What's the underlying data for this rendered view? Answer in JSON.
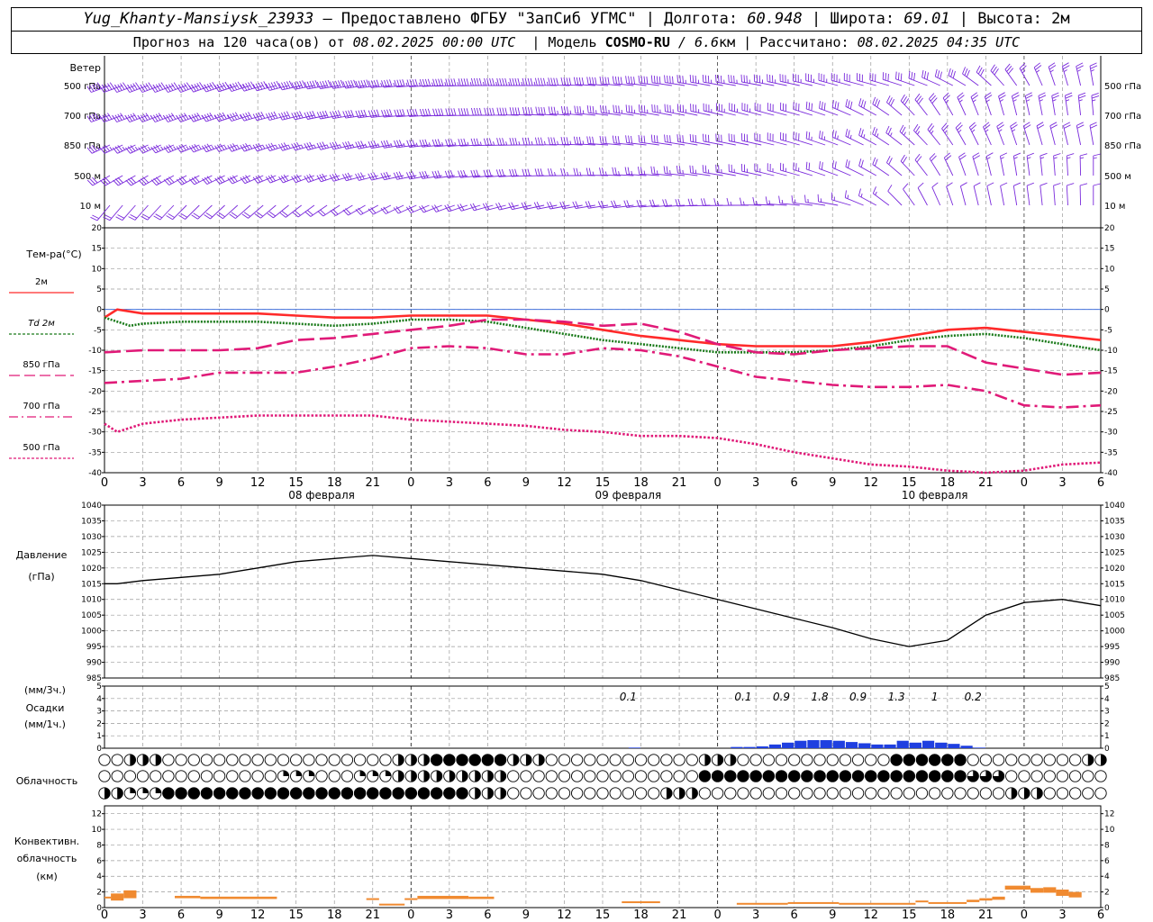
{
  "header": {
    "station": "Yug_Khanty-Mansiysk_23933",
    "provided": "– Предоставлено ФГБУ \"ЗапСиб УГМС\"",
    "lon_label": "Долгота:",
    "lon_value": "60.948",
    "lat_label": "Широта:",
    "lat_value": "69.01",
    "alt_label": "Высота:",
    "alt_value": "2м",
    "forecast_prefix": "Прогноз на 120 часа(ов) от",
    "forecast_from": "08.02.2025 00:00 UTC",
    "model_label": "Модель",
    "model_name": "COSMO-RU",
    "model_res": "/ 6.6",
    "model_res_unit": "км",
    "calc_label": "Рассчитано:",
    "calc_time": "08.02.2025 04:35 UTC"
  },
  "colors": {
    "t2m": "#ff2a2a",
    "td2m": "#1a7a1a",
    "t850": "#e01a78",
    "t700": "#e01a78",
    "t500": "#e01a78",
    "wind": "#7a2adc",
    "pressure": "#000000",
    "precip": "#1f3fe0",
    "convective": "#f08a30",
    "zero": "#2a5fd8"
  },
  "wind": {
    "title": "Ветер",
    "levels": [
      "500 гПа",
      "700 гПа",
      "850 гПа",
      "500 м",
      "10  м"
    ],
    "dir_deg": [
      [
        250,
        250,
        250,
        252,
        255,
        260,
        262,
        265,
        268,
        270,
        270,
        272,
        275,
        278,
        280,
        280,
        282,
        285,
        285,
        290,
        300,
        320,
        340,
        350
      ],
      [
        250,
        250,
        250,
        252,
        255,
        258,
        262,
        265,
        268,
        270,
        272,
        275,
        278,
        280,
        282,
        285,
        285,
        290,
        300,
        320,
        335,
        345,
        350,
        355
      ],
      [
        245,
        245,
        248,
        250,
        252,
        255,
        258,
        262,
        265,
        268,
        270,
        272,
        275,
        278,
        280,
        282,
        285,
        290,
        300,
        315,
        330,
        340,
        345,
        350
      ],
      [
        240,
        240,
        242,
        245,
        248,
        250,
        255,
        258,
        262,
        265,
        268,
        270,
        272,
        275,
        278,
        282,
        285,
        290,
        300,
        320,
        340,
        350,
        355,
        0
      ],
      [
        220,
        222,
        225,
        228,
        230,
        235,
        240,
        245,
        250,
        255,
        258,
        260,
        262,
        265,
        268,
        270,
        275,
        280,
        300,
        330,
        345,
        350,
        355,
        0
      ]
    ],
    "speed_kt": [
      [
        55,
        55,
        55,
        55,
        50,
        50,
        50,
        45,
        45,
        45,
        45,
        40,
        40,
        40,
        35,
        35,
        35,
        35,
        30,
        30,
        30,
        30,
        25,
        25
      ],
      [
        45,
        45,
        45,
        45,
        40,
        40,
        40,
        40,
        40,
        40,
        40,
        35,
        35,
        35,
        35,
        35,
        30,
        30,
        30,
        30,
        25,
        25,
        25,
        25
      ],
      [
        35,
        35,
        35,
        35,
        35,
        35,
        35,
        35,
        35,
        35,
        35,
        35,
        30,
        30,
        30,
        30,
        30,
        25,
        25,
        25,
        25,
        25,
        20,
        20
      ],
      [
        30,
        30,
        30,
        30,
        30,
        30,
        30,
        30,
        30,
        30,
        30,
        25,
        25,
        25,
        25,
        25,
        25,
        20,
        20,
        20,
        20,
        15,
        15,
        15
      ],
      [
        20,
        20,
        20,
        20,
        20,
        20,
        20,
        20,
        20,
        20,
        20,
        20,
        20,
        20,
        20,
        15,
        15,
        15,
        15,
        10,
        10,
        10,
        10,
        10
      ]
    ]
  },
  "chart_data": [
    {
      "type": "line",
      "ylabel": "Тем-ра(°С)",
      "ylim": [
        -40,
        20
      ],
      "yticks": [
        20,
        15,
        10,
        5,
        0,
        -5,
        -10,
        -15,
        -20,
        -25,
        -30,
        -35,
        -40
      ],
      "x_hours": [
        0,
        3,
        6,
        9,
        12,
        15,
        18,
        21,
        24,
        27,
        30,
        33,
        36,
        39,
        42,
        45,
        48,
        51,
        54,
        57,
        60,
        63,
        66,
        69,
        72,
        75,
        78
      ],
      "x_tick_labels": [
        "0",
        "3",
        "6",
        "9",
        "12",
        "15",
        "18",
        "21",
        "0",
        "3",
        "6",
        "9",
        "12",
        "15",
        "18",
        "21",
        "0",
        "3",
        "6",
        "9",
        "12",
        "15",
        "18",
        "21",
        "0",
        "3",
        "6"
      ],
      "day_labels": [
        "08 февраля",
        "09 февраля",
        "10 февраля"
      ],
      "grid": true,
      "series": [
        {
          "name": "2м",
          "key": "t2m",
          "style": "solid",
          "x": [
            0,
            1,
            3,
            6,
            9,
            12,
            15,
            18,
            21,
            24,
            27,
            30,
            33,
            36,
            39,
            42,
            45,
            48,
            51,
            54,
            57,
            60,
            63,
            66,
            69,
            72,
            75,
            78
          ],
          "values": [
            -2,
            0,
            -1,
            -1,
            -1,
            -1,
            -1.5,
            -2,
            -2,
            -1.5,
            -1.5,
            -1.5,
            -2.5,
            -3.5,
            -5,
            -6.5,
            -7.5,
            -8.5,
            -9,
            -9,
            -9,
            -8,
            -6.5,
            -5,
            -4.5,
            -5.5,
            -6.5,
            -7.5
          ]
        },
        {
          "name": "Td  2м",
          "key": "td2m",
          "style": "dotted",
          "x": [
            0,
            2,
            3,
            6,
            9,
            12,
            15,
            18,
            21,
            24,
            27,
            30,
            33,
            36,
            39,
            42,
            45,
            48,
            51,
            54,
            57,
            60,
            63,
            66,
            69,
            72,
            75,
            78
          ],
          "values": [
            -2,
            -4,
            -3.5,
            -3,
            -3,
            -3,
            -3.5,
            -4,
            -3.5,
            -2.5,
            -2.5,
            -3,
            -4.5,
            -6,
            -7.5,
            -8.5,
            -9.5,
            -10.5,
            -10.5,
            -10.5,
            -10,
            -9,
            -7.5,
            -6.5,
            -6,
            -7,
            -8.5,
            -10
          ]
        },
        {
          "name": "850 гПа",
          "key": "t850",
          "style": "long-dash",
          "x": [
            0,
            3,
            6,
            9,
            12,
            15,
            18,
            21,
            24,
            27,
            30,
            33,
            36,
            39,
            42,
            45,
            48,
            51,
            54,
            57,
            60,
            63,
            66,
            69,
            72,
            75,
            78
          ],
          "values": [
            -10.5,
            -10,
            -10,
            -10,
            -9.5,
            -7.5,
            -7,
            -6,
            -5,
            -4,
            -2.5,
            -2.5,
            -3,
            -4,
            -3.5,
            -5.5,
            -8.5,
            -10.5,
            -11,
            -10,
            -9.5,
            -9,
            -9,
            -13,
            -14.5,
            -16,
            -15.5
          ]
        },
        {
          "name": "700 гПа",
          "key": "t700",
          "style": "dash-dot",
          "x": [
            0,
            3,
            6,
            9,
            12,
            15,
            18,
            21,
            24,
            27,
            30,
            33,
            36,
            39,
            42,
            45,
            48,
            51,
            54,
            57,
            60,
            63,
            66,
            69,
            72,
            75,
            78
          ],
          "values": [
            -18,
            -17.5,
            -17,
            -15.5,
            -15.5,
            -15.5,
            -14,
            -12,
            -9.5,
            -9,
            -9.5,
            -11,
            -11,
            -9.5,
            -10,
            -11.5,
            -14,
            -16.5,
            -17.5,
            -18.5,
            -19,
            -19,
            -18.5,
            -20,
            -23.5,
            -24,
            -23.5
          ]
        },
        {
          "name": "500 гПа",
          "key": "t500",
          "style": "short-dash",
          "x": [
            0,
            1,
            3,
            6,
            9,
            12,
            15,
            18,
            21,
            24,
            27,
            30,
            33,
            36,
            39,
            42,
            45,
            48,
            51,
            54,
            57,
            60,
            63,
            66,
            69,
            72,
            75,
            78
          ],
          "values": [
            -28,
            -30,
            -28,
            -27,
            -26.5,
            -26,
            -26,
            -26,
            -26,
            -27,
            -27.5,
            -28,
            -28.5,
            -29.5,
            -30,
            -31,
            -31,
            -31.5,
            -33,
            -35,
            -36.5,
            -38,
            -38.5,
            -39.5,
            -40,
            -39.5,
            -38,
            -37.5
          ]
        }
      ]
    },
    {
      "type": "line",
      "ylabel": "Давление",
      "ylabel2": "(гПа)",
      "ylim": [
        985,
        1040
      ],
      "yticks": [
        1040,
        1035,
        1030,
        1025,
        1020,
        1015,
        1010,
        1005,
        1000,
        995,
        990,
        985
      ],
      "x_tick_labels": [
        "0",
        "3",
        "6",
        "9",
        "12",
        "15",
        "18",
        "21",
        "0",
        "3",
        "6",
        "9",
        "12",
        "15",
        "18",
        "21",
        "0",
        "3",
        "6",
        "9",
        "12",
        "15",
        "18",
        "21",
        "0",
        "3",
        "6"
      ],
      "grid": true,
      "series": [
        {
          "name": "Давление",
          "x": [
            0,
            1,
            3,
            6,
            9,
            12,
            15,
            18,
            21,
            24,
            27,
            30,
            33,
            36,
            39,
            42,
            45,
            48,
            51,
            54,
            57,
            60,
            63,
            66,
            69,
            72,
            75,
            78
          ],
          "values": [
            1015,
            1015,
            1016,
            1017,
            1018,
            1020,
            1022,
            1023,
            1024,
            1023,
            1022,
            1021,
            1020,
            1019,
            1018,
            1016,
            1013,
            1010,
            1007,
            1004,
            1001,
            997.5,
            995,
            997,
            1005,
            1009,
            1010,
            1008
          ]
        }
      ]
    },
    {
      "type": "bar",
      "ylabel_top": "(мм/3ч.)",
      "ylabel": "Осадки",
      "ylabel2": "(мм/1ч.)",
      "ylim": [
        0,
        5
      ],
      "yticks": [
        5,
        4,
        3,
        2,
        1,
        0
      ],
      "grid": true,
      "labels_3h": [
        {
          "x": 41,
          "text": "0.1"
        },
        {
          "x": 50,
          "text": "0.1"
        },
        {
          "x": 53,
          "text": "0.9"
        },
        {
          "x": 56,
          "text": "1.8"
        },
        {
          "x": 59,
          "text": "0.9"
        },
        {
          "x": 62,
          "text": "1.3"
        },
        {
          "x": 65,
          "text": "1"
        },
        {
          "x": 68,
          "text": "0.2"
        }
      ],
      "hour_start": [
        41,
        49,
        50,
        51,
        52,
        53,
        54,
        55,
        56,
        57,
        58,
        59,
        60,
        61,
        62,
        63,
        64,
        65,
        66,
        67,
        68
      ],
      "values": [
        0.05,
        0.1,
        0.1,
        0.15,
        0.3,
        0.45,
        0.6,
        0.65,
        0.65,
        0.6,
        0.5,
        0.4,
        0.3,
        0.3,
        0.6,
        0.45,
        0.6,
        0.45,
        0.35,
        0.2,
        0.05
      ]
    },
    {
      "type": "table",
      "ylabel": "Облачность",
      "hours": [
        0,
        3,
        6,
        9,
        12,
        15,
        18,
        21,
        24,
        27,
        30,
        33,
        36,
        39,
        42,
        45,
        48,
        51,
        54,
        57,
        60,
        63,
        66,
        69,
        72,
        75,
        78
      ],
      "rows": [
        [
          0,
          0.5,
          0,
          0,
          0,
          0,
          0,
          0,
          0.5,
          1,
          1,
          0.5,
          0,
          0,
          0,
          0,
          0.5,
          0,
          0,
          0,
          0,
          1,
          1,
          0,
          0,
          0,
          0.5
        ],
        [
          0,
          0,
          0,
          0,
          0,
          0.25,
          0,
          0.25,
          0.5,
          0.5,
          0.5,
          0,
          0,
          0,
          0,
          0,
          1,
          1,
          1,
          1,
          1,
          1,
          1,
          0.75,
          0,
          0,
          0
        ],
        [
          0.5,
          0.25,
          1,
          1,
          1,
          1,
          1,
          1,
          1,
          1,
          0.5,
          0,
          0,
          0,
          0,
          0.5,
          0,
          0,
          0,
          0,
          0,
          0,
          0,
          0,
          0.5,
          0,
          0
        ]
      ]
    },
    {
      "type": "bar",
      "ylabel": "Конвективн.",
      "ylabel2": "облачность",
      "ylabel3": "(км)",
      "ylim": [
        0,
        13
      ],
      "yticks": [
        12,
        10,
        8,
        6,
        4,
        2,
        0
      ],
      "grid": true,
      "segments": [
        {
          "x0": 0,
          "x1": 0.5,
          "bottom": 1.2,
          "top": 1.4
        },
        {
          "x0": 0.5,
          "x1": 1.5,
          "bottom": 0.9,
          "top": 1.8
        },
        {
          "x0": 1.5,
          "x1": 2.5,
          "bottom": 1.2,
          "top": 2.2
        },
        {
          "x0": 5.5,
          "x1": 7.5,
          "bottom": 1.2,
          "top": 1.5
        },
        {
          "x0": 7.5,
          "x1": 13.5,
          "bottom": 1.1,
          "top": 1.4
        },
        {
          "x0": 20.5,
          "x1": 21.5,
          "bottom": 1.0,
          "top": 1.2
        },
        {
          "x0": 21.5,
          "x1": 23.5,
          "bottom": 0.3,
          "top": 0.5
        },
        {
          "x0": 23.5,
          "x1": 24.5,
          "bottom": 1.0,
          "top": 1.2
        },
        {
          "x0": 24.5,
          "x1": 28.5,
          "bottom": 1.1,
          "top": 1.5
        },
        {
          "x0": 28.5,
          "x1": 30.5,
          "bottom": 1.1,
          "top": 1.4
        },
        {
          "x0": 40.5,
          "x1": 43.5,
          "bottom": 0.6,
          "top": 0.8
        },
        {
          "x0": 49.5,
          "x1": 53.5,
          "bottom": 0.4,
          "top": 0.6
        },
        {
          "x0": 53.5,
          "x1": 57.5,
          "bottom": 0.5,
          "top": 0.7
        },
        {
          "x0": 57.5,
          "x1": 63.5,
          "bottom": 0.4,
          "top": 0.6
        },
        {
          "x0": 63.5,
          "x1": 64.5,
          "bottom": 0.7,
          "top": 0.9
        },
        {
          "x0": 64.5,
          "x1": 67.5,
          "bottom": 0.5,
          "top": 0.7
        },
        {
          "x0": 67.5,
          "x1": 68.5,
          "bottom": 0.7,
          "top": 1.0
        },
        {
          "x0": 68.5,
          "x1": 69.5,
          "bottom": 0.9,
          "top": 1.2
        },
        {
          "x0": 69.5,
          "x1": 70.5,
          "bottom": 1.0,
          "top": 1.4
        },
        {
          "x0": 70.5,
          "x1": 72.5,
          "bottom": 2.3,
          "top": 2.8
        },
        {
          "x0": 72.5,
          "x1": 73.5,
          "bottom": 1.9,
          "top": 2.5
        },
        {
          "x0": 73.5,
          "x1": 74.5,
          "bottom": 1.9,
          "top": 2.6
        },
        {
          "x0": 74.5,
          "x1": 75.5,
          "bottom": 1.5,
          "top": 2.3
        },
        {
          "x0": 75.5,
          "x1": 76.5,
          "bottom": 1.3,
          "top": 2.0
        }
      ]
    }
  ]
}
